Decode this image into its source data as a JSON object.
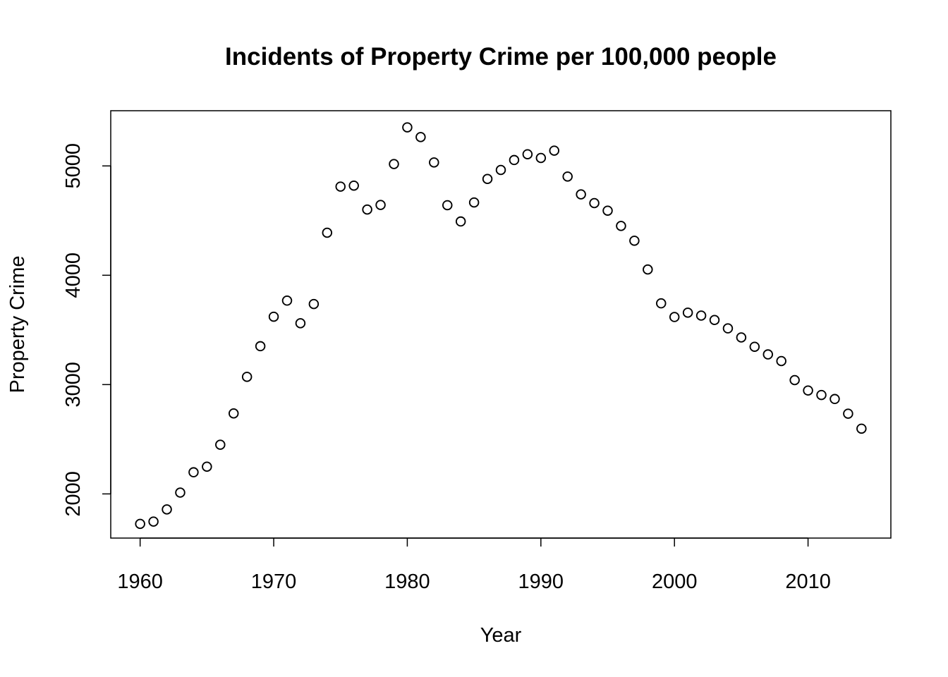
{
  "chart_data": {
    "type": "scatter",
    "title": "Incidents of Property Crime per 100,000 people",
    "xlabel": "Year",
    "ylabel": "Property Crime",
    "xlim": [
      1957.8,
      2016.2
    ],
    "ylim": [
      1596,
      5505
    ],
    "x_ticks": [
      1960,
      1970,
      1980,
      1990,
      2000,
      2010
    ],
    "y_ticks": [
      2000,
      3000,
      4000,
      5000
    ],
    "grid": false,
    "legend": "none",
    "marker": "open-circle",
    "colors": {
      "marker": "#000000",
      "frame": "#000000",
      "background": "#ffffff"
    },
    "series": [
      {
        "x": [
          1960,
          1961,
          1962,
          1963,
          1964,
          1965,
          1966,
          1967,
          1968,
          1969,
          1970,
          1971,
          1972,
          1973,
          1974,
          1975,
          1976,
          1977,
          1978,
          1979,
          1980,
          1981,
          1982,
          1983,
          1984,
          1985,
          1986,
          1987,
          1988,
          1989,
          1990,
          1991,
          1992,
          1993,
          1994,
          1995,
          1996,
          1997,
          1998,
          1999,
          2000,
          2001,
          2002,
          2003,
          2004,
          2005,
          2006,
          2007,
          2008,
          2009,
          2010,
          2011,
          2012,
          2013,
          2014
        ],
        "y": [
          1726,
          1747,
          1858,
          2012,
          2198,
          2249,
          2450,
          2736,
          3071,
          3351,
          3621,
          3768,
          3561,
          3737,
          4389,
          4811,
          4820,
          4601,
          4643,
          5017,
          5353,
          5264,
          5032,
          4641,
          4492,
          4666,
          4881,
          4963,
          5054,
          5107,
          5073,
          5140,
          4903,
          4740,
          4660,
          4591,
          4451,
          4316,
          4053,
          3743,
          3618,
          3658,
          3631,
          3591,
          3514,
          3431,
          3346,
          3276,
          3215,
          3041,
          2946,
          2905,
          2868,
          2734,
          2597
        ]
      }
    ]
  }
}
